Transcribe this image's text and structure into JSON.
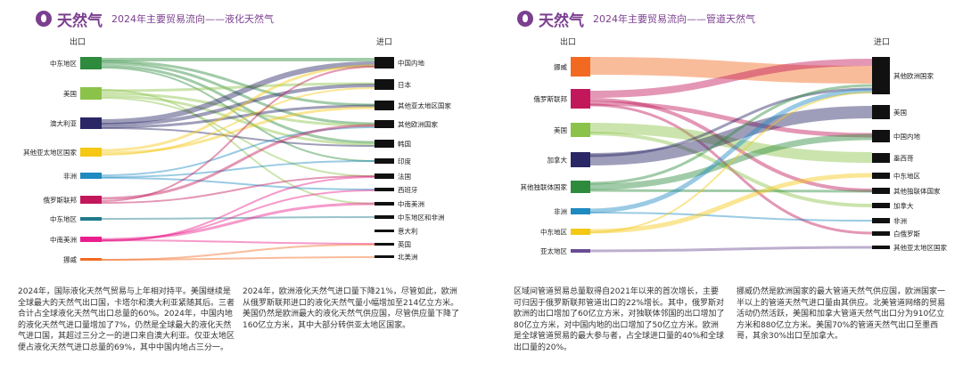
{
  "left": {
    "brand": "天然气",
    "subtitle": "2024年主要贸易流向——液化天然气",
    "exports_label": "出口",
    "imports_label": "进口",
    "sources": [
      {
        "name": "中东地区",
        "color": "#2e8b3e"
      },
      {
        "name": "美国",
        "color": "#8bc34a"
      },
      {
        "name": "澳大利亚",
        "color": "#2a2766"
      },
      {
        "name": "其他亚太地区国家",
        "color": "#f4c814"
      },
      {
        "name": "非洲",
        "color": "#1f8ac0"
      },
      {
        "name": "俄罗斯联邦",
        "color": "#c2185b"
      },
      {
        "name": "中东地区",
        "color": "#1f7a8c"
      },
      {
        "name": "中南美洲",
        "color": "#e91e8c"
      },
      {
        "name": "挪威",
        "color": "#f26a21"
      }
    ],
    "destinations": [
      {
        "name": "中国内地"
      },
      {
        "name": "日本"
      },
      {
        "name": "其他亚太地区国家"
      },
      {
        "name": "其他欧洲国家"
      },
      {
        "name": "韩国"
      },
      {
        "name": "印度"
      },
      {
        "name": "法国"
      },
      {
        "name": "西班牙"
      },
      {
        "name": "中南美洲"
      },
      {
        "name": "中东地区和非洲"
      },
      {
        "name": "意大利"
      },
      {
        "name": "英国"
      },
      {
        "name": "北美洲"
      }
    ],
    "para1": "2024年，国际液化天然气贸易与上年相对持平。美国继续是全球最大的天然气出口国，卡塔尔和澳大利亚紧随其后。三者合计占全球液化天然气出口总量的60%。2024年，中国内地的液化天然气进口量增加了7%，仍然是全球最大的液化天然气进口国，其超过三分之一的进口来自澳大利亚。仅亚太地区便占液化天然气进口总量的69%，其中中国内地占三分一。",
    "para2": "2024年，欧洲液化天然气进口量下降21%，尽管如此，欧洲从俄罗斯联邦进口的液化天然气量小幅增加至214亿立方米。美国仍然是欧洲最大的液化天然气供应国，尽管供应量下降了160亿立方米，其中大部分转供亚太地区国家。"
  },
  "right": {
    "brand": "天然气",
    "subtitle": "2024年主要贸易流向——管道天然气",
    "exports_label": "出口",
    "imports_label": "进口",
    "sources": [
      {
        "name": "挪威",
        "color": "#f26a21"
      },
      {
        "name": "俄罗斯联邦",
        "color": "#c2185b"
      },
      {
        "name": "美国",
        "color": "#8bc34a"
      },
      {
        "name": "加拿大",
        "color": "#2a2766"
      },
      {
        "name": "其他独联体国家",
        "color": "#2e8b3e"
      },
      {
        "name": "非洲",
        "color": "#1f8ac0"
      },
      {
        "name": "中东地区",
        "color": "#f4c814"
      },
      {
        "name": "亚太地区",
        "color": "#6a4c93"
      }
    ],
    "destinations": [
      {
        "name": "其他欧洲国家"
      },
      {
        "name": "美国"
      },
      {
        "name": "中国内地"
      },
      {
        "name": "墨西哥"
      },
      {
        "name": "中东地区"
      },
      {
        "name": "其他独联体国家"
      },
      {
        "name": "加拿大"
      },
      {
        "name": "非洲"
      },
      {
        "name": "白俄罗斯"
      },
      {
        "name": "其他亚太地区国家"
      }
    ],
    "para1": "区域间管道贸易总量取得自2021年以来的首次增长，主要可归因于俄罗斯联邦管道出口的22%增长。其中，俄罗斯对欧洲的出口增加了60亿立方米，对独联体邻国的出口增加了80亿立方米，对中国内地的出口增加了50亿立方米。欧洲是全球管道贸易的最大参与者，占全球进口量的40%和全球出口量的20%。",
    "para2": "挪威仍然是欧洲国家的最大管道天然气供应国，欧洲国家一半以上的管道天然气进口量由其供应。北美管道网络的贸易活动仍然活跃，美国和加拿大管道天然气出口分为910亿立方米和880亿立方米。美国70%的管道天然气出口至墨西哥，其余30%出口至加拿大。"
  }
}
